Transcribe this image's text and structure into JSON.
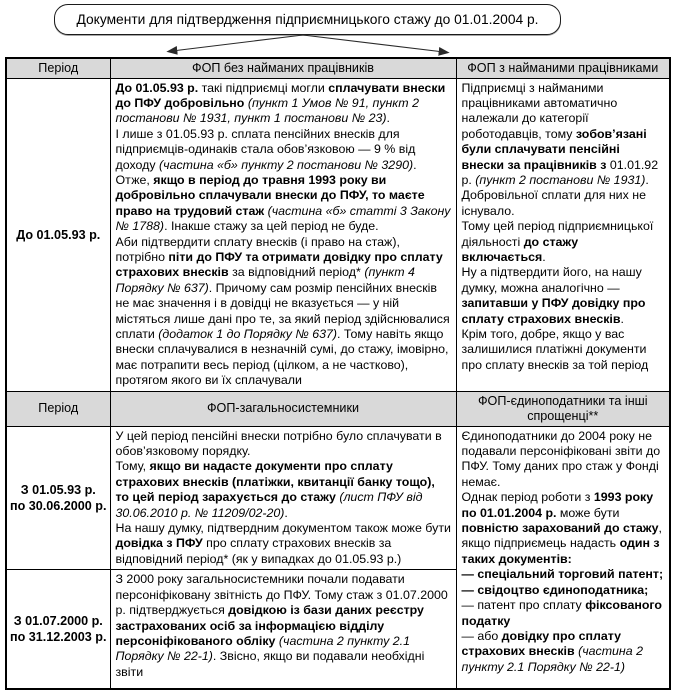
{
  "title": "Документи для підтвердження підприємницького стажу до 01.01.2004 р.",
  "colors": {
    "header_bg": "#d9d9d9",
    "border": "#000000",
    "text": "#000000",
    "background": "#ffffff"
  },
  "icons": {
    "left_connector": "arrow-down-left-icon",
    "right_connector": "arrow-down-right-icon"
  },
  "section1": {
    "headers": {
      "period": "Період",
      "main": "ФОП без найманих працівників",
      "right": "ФОП з найманими працівниками"
    },
    "row": {
      "period": [
        [
          [
            "b",
            "До 01.05.93 р."
          ]
        ]
      ],
      "main": [
        [
          [
            "b",
            "До 01.05.93 р."
          ],
          [
            "r",
            " такі підприємці могли "
          ],
          [
            "b",
            "сплачувати внески до ПФУ добровільно"
          ],
          [
            "r",
            " "
          ],
          [
            "i",
            "(пункт 1 Умов № 91, пункт 2 постанови № 1931, пункт 1 постанови № 23)"
          ],
          [
            "r",
            "."
          ]
        ],
        [
          [
            "r",
            "І лише з 01.05.93 р. сплата пенсійних внесків для підприємців-одинаків стала обов’язковою — 9 % від доходу "
          ],
          [
            "i",
            "(частина «б» пункту 2 постанови № 3290)"
          ],
          [
            "r",
            "."
          ]
        ],
        [
          [
            "r",
            "Отже, "
          ],
          [
            "b",
            "якщо в період до травня 1993 року ви добровільно сплачували внески до ПФУ, то маєте право на трудовий стаж"
          ],
          [
            "r",
            " "
          ],
          [
            "i",
            "(частина «б» статті 3 Закону № 1788)"
          ],
          [
            "r",
            ". Інакше стажу за цей період не буде."
          ]
        ],
        [
          [
            "r",
            "Аби підтвердити сплату внесків (і право на стаж), потрібно "
          ],
          [
            "b",
            "піти до ПФУ та отримати довідку про сплату страхових внесків"
          ],
          [
            "r",
            " за відповідний період* "
          ],
          [
            "i",
            "(пункт 4 Порядку № 637)"
          ],
          [
            "r",
            ". Причому сам розмір пенсійних внесків не має значення і в довідці не вказується — у ній містяться лише дані про те, за який період здійснювалися сплати "
          ],
          [
            "i",
            "(додаток 1 до Порядку № 637)"
          ],
          [
            "r",
            ". Тому навіть якщо внески сплачувалися в незначній сумі, до стажу, імовірно, має потрапити весь період (цілком, а не частково), протягом якого ви їх сплачували"
          ]
        ]
      ],
      "right": [
        [
          [
            "r",
            "Підприємці з найманими працівниками автоматично належали до категорії роботодавців, тому "
          ],
          [
            "b",
            "зобов’язані були сплачувати пенсійні внески за працівників з"
          ],
          [
            "r",
            " 01.01.92 р. "
          ],
          [
            "i",
            "(пункт 2 постанови № 1931)"
          ],
          [
            "r",
            "."
          ]
        ],
        [
          [
            "r",
            "Добровільної сплати для них не існувало."
          ]
        ],
        [
          [
            "r",
            "Тому цей період підприємницької діяльності "
          ],
          [
            "b",
            "до стажу включається"
          ],
          [
            "r",
            "."
          ]
        ],
        [
          [
            "r",
            "Ну а підтвердити його, на нашу думку, можна аналогічно — "
          ],
          [
            "b",
            "запитавши у ПФУ довідку про сплату страхових внесків"
          ],
          [
            "r",
            "."
          ]
        ],
        [
          [
            "r",
            "Крім того, добре, якщо у вас залишилися платіжні документи про сплату внесків за той період"
          ]
        ]
      ]
    }
  },
  "section2": {
    "headers": {
      "period": "Період",
      "main": "ФОП-загальносистемники",
      "right": "ФОП-єдиноподатники та інші спрощенці**"
    },
    "rows": [
      {
        "period": [
          [
            [
              "b",
              "З 01.05.93 р."
            ]
          ],
          [
            [
              "b",
              "по 30.06.2000 р."
            ]
          ]
        ],
        "main": [
          [
            [
              "r",
              "У цей період пенсійні внески потрібно було сплачувати в обов’язковому порядку."
            ]
          ],
          [
            [
              "r",
              "Тому, "
            ],
            [
              "b",
              "якщо ви надасте документи про сплату страхових внесків (платіжки, квитанції банку тощо), то цей період зарахується до стажу"
            ],
            [
              "r",
              " "
            ],
            [
              "i",
              "(лист ПФУ від 30.06.2010 р. № 11209/02-20)"
            ],
            [
              "r",
              "."
            ]
          ],
          [
            [
              "r",
              "На нашу думку, підтвердним документом також може бути "
            ],
            [
              "b",
              "довідка з ПФУ"
            ],
            [
              "r",
              " про сплату страхових внесків за відповідний період* (як у випадках до 01.05.93 р.)"
            ]
          ]
        ]
      },
      {
        "period": [
          [
            [
              "b",
              "З 01.07.2000 р."
            ]
          ],
          [
            [
              "b",
              "по 31.12.2003 р."
            ]
          ]
        ],
        "main": [
          [
            [
              "r",
              "З 2000 року загальносистемники почали подавати персоніфіковану звітність до ПФУ. Тому стаж з 01.07.2000 р. підтверджується "
            ],
            [
              "b",
              "довідкою із бази даних реєстру застрахованих осіб за інформацією відділу персоніфікованого обліку"
            ],
            [
              "r",
              " "
            ],
            [
              "i",
              "(частина 2 пункту 2.1 Порядку № 22-1)"
            ],
            [
              "r",
              ". Звісно, якщо ви подавали необхідні звіти"
            ]
          ]
        ]
      }
    ],
    "right_spanning": [
      [
        [
          "r",
          "Єдиноподатники до 2004 року не подавали персоніфіковані звіти до ПФУ. Тому даних про стаж у Фонді немає."
        ]
      ],
      [
        [
          "r",
          "Однак період роботи з "
        ],
        [
          "b",
          "1993 року по 01.01.2004 р."
        ],
        [
          "r",
          " може бути "
        ],
        [
          "b",
          "повністю зарахований до стажу"
        ],
        [
          "r",
          ", якщо підприємець надасть "
        ],
        [
          "b",
          "один з таких документів:"
        ]
      ],
      [
        [
          "b",
          "— спеціальний торговий патент;"
        ]
      ],
      [
        [
          "b",
          "— свідоцтво єдиноподатника;"
        ]
      ],
      [
        [
          "r",
          "— патент про сплату "
        ],
        [
          "b",
          "фіксованого податку"
        ]
      ],
      [
        [
          "r",
          "— або "
        ],
        [
          "b",
          "довідку про сплату страхових внесків"
        ],
        [
          "r",
          " "
        ],
        [
          "i",
          "(частина 2 пункту 2.1 Порядку № 22-1)"
        ]
      ]
    ]
  }
}
